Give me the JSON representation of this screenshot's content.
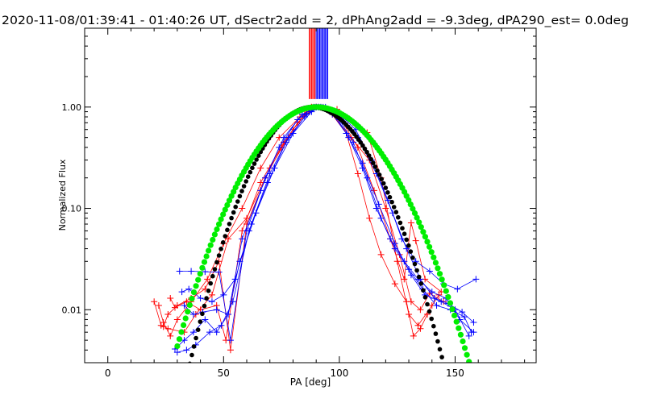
{
  "chart_data": {
    "type": "line",
    "title": "2020-11-08/01:39:41 - 01:40:26 UT, dSectr2add = 2, dPhAng2add = -9.3deg, dPA290_est=  0.0deg",
    "xlabel": "PA [deg]",
    "ylabel": "Normalized Flux",
    "xlim": [
      -10,
      185
    ],
    "ylim": [
      0.003,
      6.0
    ],
    "yscale": "log",
    "x_ticks": [
      0,
      50,
      100,
      150
    ],
    "x_tick_labels": [
      "0",
      "50",
      "100",
      "150"
    ],
    "y_ticks": [
      0.01,
      0.1,
      1.0
    ],
    "y_tick_labels": [
      "0.01",
      "0.10",
      "1.00"
    ],
    "peak_pa": 90,
    "peak_marker_lines": {
      "color_left": "#ff0000",
      "color_right": "#0000ff",
      "x_range": [
        87,
        95
      ],
      "y_from": 1.2
    },
    "colors": {
      "red": "#ff0000",
      "blue": "#0000ff",
      "black": "#000000",
      "green": "#00ee00"
    },
    "series": [
      {
        "name": "red sectors",
        "color": "#ff0000",
        "marker": "+",
        "tracks": [
          {
            "x": [
              20,
              23,
              26,
              33,
              38,
              45,
              52,
              60,
              68,
              75,
              82,
              87,
              90
            ],
            "y": [
              0.012,
              0.007,
              0.0065,
              0.006,
              0.009,
              0.014,
              0.05,
              0.08,
              0.2,
              0.4,
              0.7,
              0.9,
              1.0
            ]
          },
          {
            "x": [
              22,
              24,
              27,
              30,
              36,
              43,
              50,
              58,
              66,
              74,
              83,
              88
            ],
            "y": [
              0.011,
              0.0075,
              0.0055,
              0.008,
              0.012,
              0.02,
              0.045,
              0.1,
              0.25,
              0.5,
              0.8,
              1.0
            ]
          },
          {
            "x": [
              24,
              26,
              30,
              36,
              42,
              48,
              53,
              60,
              70,
              80,
              88
            ],
            "y": [
              0.0068,
              0.009,
              0.011,
              0.013,
              0.016,
              0.03,
              0.004,
              0.07,
              0.25,
              0.6,
              1.0
            ]
          },
          {
            "x": [
              27,
              29,
              34,
              40,
              47,
              51,
              58,
              66,
              76,
              85,
              89
            ],
            "y": [
              0.013,
              0.0105,
              0.012,
              0.01,
              0.011,
              0.005,
              0.06,
              0.18,
              0.45,
              0.85,
              1.0
            ]
          },
          {
            "x": [
              90,
              96,
              103,
              108,
              113,
              118,
              124,
              129,
              132,
              135,
              138
            ],
            "y": [
              1.0,
              0.9,
              0.55,
              0.22,
              0.08,
              0.035,
              0.018,
              0.012,
              0.0055,
              0.0065,
              0.009
            ]
          },
          {
            "x": [
              90,
              99,
              106,
              112,
              118,
              125,
              130,
              134,
              140,
              143
            ],
            "y": [
              1.0,
              0.95,
              0.7,
              0.56,
              0.2,
              0.03,
              0.009,
              0.007,
              0.011,
              0.014
            ]
          },
          {
            "x": [
              91,
              100,
              108,
              115,
              122,
              128,
              131,
              133,
              137,
              144
            ],
            "y": [
              1.0,
              0.8,
              0.4,
              0.15,
              0.05,
              0.02,
              0.072,
              0.048,
              0.02,
              0.015
            ]
          },
          {
            "x": [
              90,
              97,
              105,
              113,
              120,
              126,
              131,
              135,
              139,
              145
            ],
            "y": [
              1.0,
              0.85,
              0.5,
              0.3,
              0.1,
              0.035,
              0.012,
              0.01,
              0.0145,
              0.012
            ]
          }
        ]
      },
      {
        "name": "blue sectors",
        "color": "#0000ff",
        "marker": "+",
        "tracks": [
          {
            "x": [
              31,
              36,
              42,
              48,
              53,
              60,
              68,
              76,
              84,
              91
            ],
            "y": [
              0.024,
              0.024,
              0.0237,
              0.0235,
              0.005,
              0.06,
              0.2,
              0.5,
              0.85,
              1.0
            ]
          },
          {
            "x": [
              29,
              33,
              37,
              42,
              47,
              52,
              58,
              66,
              74,
              82,
              89
            ],
            "y": [
              0.0041,
              0.005,
              0.006,
              0.008,
              0.006,
              0.009,
              0.05,
              0.15,
              0.4,
              0.75,
              1.0
            ]
          },
          {
            "x": [
              30,
              34,
              38,
              44,
              49,
              54,
              61,
              69,
              77,
              85,
              90
            ],
            "y": [
              0.0038,
              0.004,
              0.0045,
              0.006,
              0.007,
              0.012,
              0.06,
              0.18,
              0.45,
              0.8,
              1.0
            ]
          },
          {
            "x": [
              32,
              35,
              40,
              45,
              50,
              55,
              62,
              70,
              78,
              86,
              91
            ],
            "y": [
              0.015,
              0.016,
              0.013,
              0.012,
              0.014,
              0.02,
              0.07,
              0.22,
              0.5,
              0.85,
              1.0
            ]
          },
          {
            "x": [
              33,
              37,
              41,
              47,
              52,
              57,
              64,
              72,
              80,
              88,
              92
            ],
            "y": [
              0.011,
              0.009,
              0.0095,
              0.01,
              0.009,
              0.03,
              0.09,
              0.25,
              0.55,
              0.9,
              1.0
            ]
          },
          {
            "x": [
              92,
              98,
              104,
              110,
              116,
              122,
              128,
              134,
              140,
              146,
              152,
              158
            ],
            "y": [
              1.0,
              0.85,
              0.5,
              0.25,
              0.1,
              0.05,
              0.03,
              0.02,
              0.015,
              0.013,
              0.008,
              0.006
            ]
          },
          {
            "x": [
              93,
              100,
              106,
              112,
              118,
              124,
              130,
              136,
              142,
              148,
              154,
              157
            ],
            "y": [
              1.0,
              0.75,
              0.45,
              0.2,
              0.08,
              0.04,
              0.025,
              0.016,
              0.011,
              0.01,
              0.0085,
              0.006
            ]
          },
          {
            "x": [
              91,
              99,
              107,
              114,
              121,
              127,
              133,
              139,
              145,
              151,
              159
            ],
            "y": [
              1.0,
              0.9,
              0.6,
              0.3,
              0.12,
              0.05,
              0.03,
              0.024,
              0.018,
              0.016,
              0.02
            ]
          },
          {
            "x": [
              94,
              101,
              108,
              116,
              123,
              129,
              135,
              141,
              147,
              153,
              158
            ],
            "y": [
              1.0,
              0.8,
              0.5,
              0.22,
              0.09,
              0.04,
              0.02,
              0.013,
              0.0115,
              0.0095,
              0.0075
            ]
          },
          {
            "x": [
              90,
              97,
              103,
              110,
              117,
              124,
              131,
              137,
              144,
              150,
              156
            ],
            "y": [
              1.0,
              0.85,
              0.55,
              0.28,
              0.11,
              0.045,
              0.022,
              0.014,
              0.012,
              0.01,
              0.0055
            ]
          }
        ]
      },
      {
        "name": "black model",
        "color": "#000000",
        "marker": "dot",
        "center": 88,
        "sigma_left": 15.4,
        "sigma_right": 16.7
      },
      {
        "name": "green model",
        "color": "#00ee00",
        "marker": "dot",
        "center": 90,
        "sigma_left": 18.2,
        "sigma_right": 19.4
      }
    ]
  }
}
